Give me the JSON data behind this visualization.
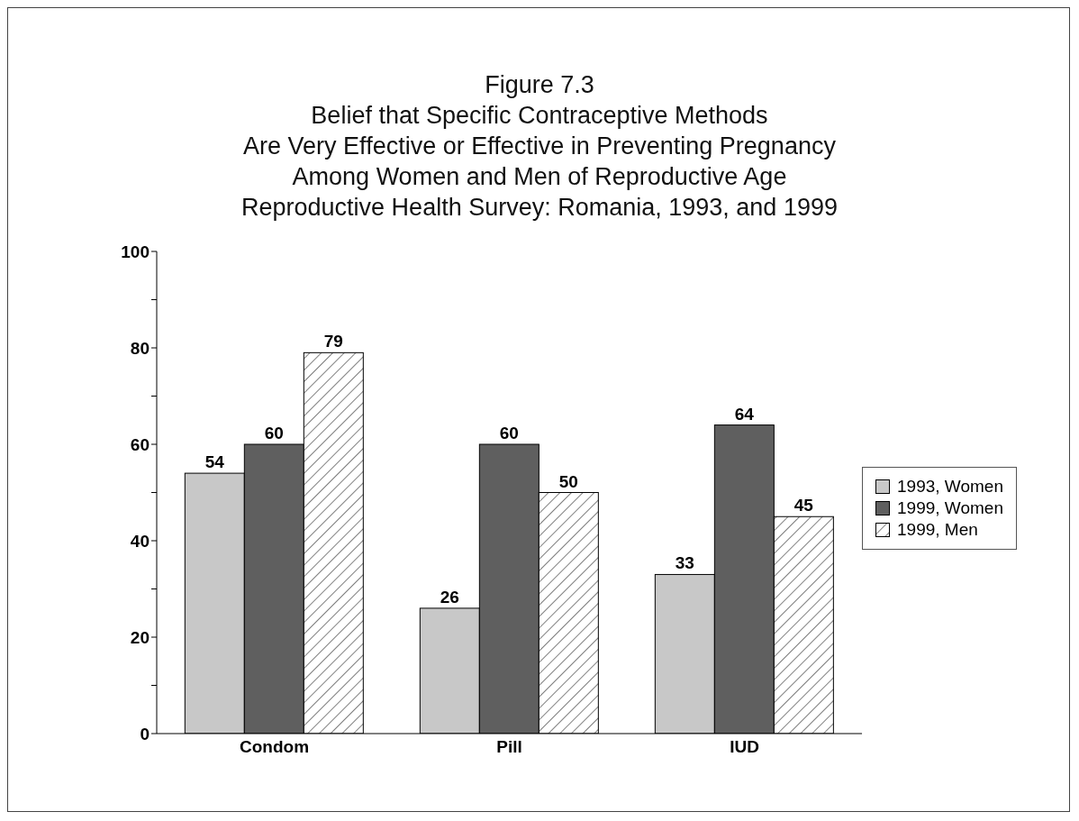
{
  "chart_data": {
    "type": "bar",
    "title": "Figure 7.3",
    "subtitle": "Belief that Specific Contraceptive Methods\nAre Very Effective or Effective in Preventing Pregnancy\nAmong Women and Men of Reproductive Age\nReproductive Health Survey: Romania, 1993, and 1999",
    "categories": [
      "Condom",
      "Pill",
      "IUD"
    ],
    "series": [
      {
        "name": "1993, Women",
        "color": "#c8c8c8",
        "values": [
          54,
          26,
          33
        ]
      },
      {
        "name": "1999, Women",
        "color": "#5f5f5f",
        "values": [
          60,
          60,
          64
        ]
      },
      {
        "name": "1999, Men",
        "color": "#ffffff",
        "values": [
          79,
          50,
          45
        ]
      }
    ],
    "ylim": [
      0,
      100
    ],
    "yticks": [
      0,
      {
        "value": 10,
        "label": null
      },
      20,
      {
        "value": 30,
        "label": null
      },
      40,
      {
        "value": 50,
        "label": null
      },
      60,
      {
        "value": 70,
        "label": null
      },
      80,
      {
        "value": 90,
        "label": null
      },
      100
    ],
    "grid": false,
    "legend": "right",
    "data_labels": true
  }
}
